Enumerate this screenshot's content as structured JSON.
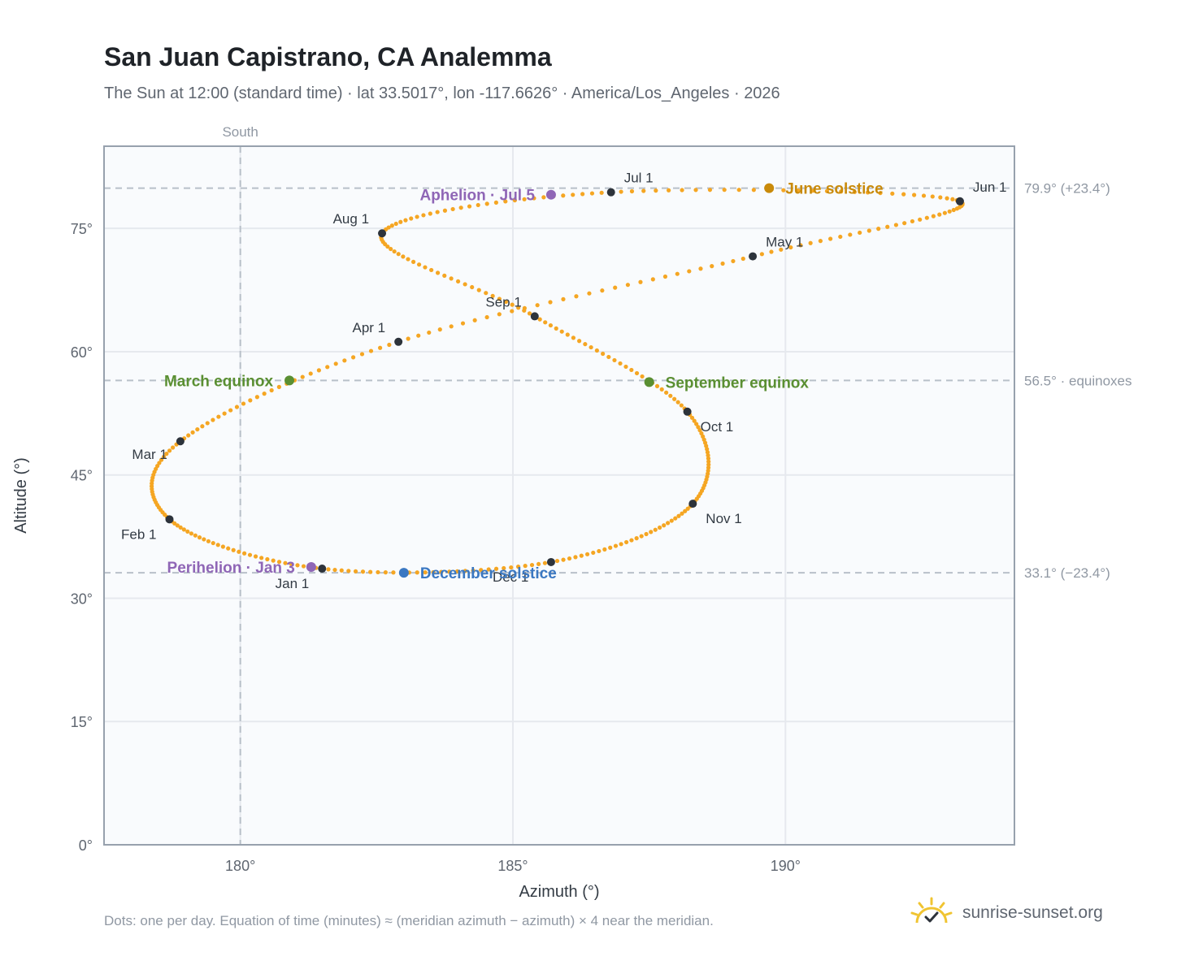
{
  "header": {
    "title": "San Juan Capistrano, CA Analemma",
    "subtitle": "The Sun at 12:00 (standard time) · lat 33.5017°, lon -117.6626° · America/Los_Angeles · 2026"
  },
  "footer": {
    "note": "Dots: one per day. Equation of time (minutes) ≈ (meridian azimuth − azimuth) × 4 near the meridian.",
    "brand": "sunrise-sunset.org",
    "brand_icon": "sun-check-icon"
  },
  "colors": {
    "path": "#f5a623",
    "month_marker": "#2d333b",
    "equinox": "#5a8f32",
    "june_solstice": "#c98a0a",
    "december_solstice": "#3b78c2",
    "apsis": "#8f66b6",
    "grid": "#e6e9ee",
    "plot_bg": "#f9fbfd",
    "frame": "#97a1ad",
    "ref_line": "#b8c0c9"
  },
  "chart_data": {
    "type": "scatter",
    "xlabel": "Azimuth (°)",
    "ylabel": "Altitude (°)",
    "xlim": [
      177.5,
      194.2
    ],
    "ylim": [
      0,
      85
    ],
    "x_ticks": [
      180,
      185,
      190
    ],
    "x_tick_labels": [
      "180°",
      "185°",
      "190°"
    ],
    "y_ticks": [
      0,
      15,
      30,
      45,
      60,
      75
    ],
    "y_tick_labels": [
      "0°",
      "15°",
      "30°",
      "45°",
      "60°",
      "75°"
    ],
    "grid": true,
    "legend": "none",
    "meridian": {
      "azimuth": 180,
      "label": "South"
    },
    "reference_lines": [
      {
        "altitude": 79.9,
        "label": "79.9° (+23.4°)"
      },
      {
        "altitude": 56.5,
        "label": "56.5° · equinoxes"
      },
      {
        "altitude": 33.1,
        "label": "33.1° (−23.4°)"
      }
    ],
    "month_markers": [
      {
        "label": "Jan 1",
        "az": 181.5,
        "alt": 33.6
      },
      {
        "label": "Feb 1",
        "az": 178.7,
        "alt": 39.6
      },
      {
        "label": "Mar 1",
        "az": 178.9,
        "alt": 49.1
      },
      {
        "label": "Apr 1",
        "az": 182.9,
        "alt": 61.2
      },
      {
        "label": "May 1",
        "az": 189.4,
        "alt": 71.6
      },
      {
        "label": "Jun 1",
        "az": 193.2,
        "alt": 78.3
      },
      {
        "label": "Jul 1",
        "az": 186.8,
        "alt": 79.4
      },
      {
        "label": "Aug 1",
        "az": 182.6,
        "alt": 74.4
      },
      {
        "label": "Sep 1",
        "az": 185.4,
        "alt": 64.3
      },
      {
        "label": "Oct 1",
        "az": 188.2,
        "alt": 52.7
      },
      {
        "label": "Nov 1",
        "az": 188.3,
        "alt": 41.5
      },
      {
        "label": "Dec 1",
        "az": 185.7,
        "alt": 34.4
      }
    ],
    "events": [
      {
        "label": "March equinox",
        "az": 180.9,
        "alt": 56.5,
        "color_key": "equinox",
        "side": "left"
      },
      {
        "label": "June solstice",
        "az": 189.7,
        "alt": 79.9,
        "color_key": "june_solstice",
        "side": "right"
      },
      {
        "label": "September equinox",
        "az": 187.5,
        "alt": 56.3,
        "color_key": "equinox",
        "side": "right"
      },
      {
        "label": "December solstice",
        "az": 183.0,
        "alt": 33.1,
        "color_key": "december_solstice",
        "side": "right"
      },
      {
        "label": "Perihelion · Jan 3",
        "az": 181.3,
        "alt": 33.8,
        "color_key": "apsis",
        "side": "left"
      },
      {
        "label": "Aphelion · Jul 5",
        "az": 185.7,
        "alt": 79.1,
        "color_key": "apsis",
        "side": "left"
      }
    ],
    "days_in_year": 365
  }
}
